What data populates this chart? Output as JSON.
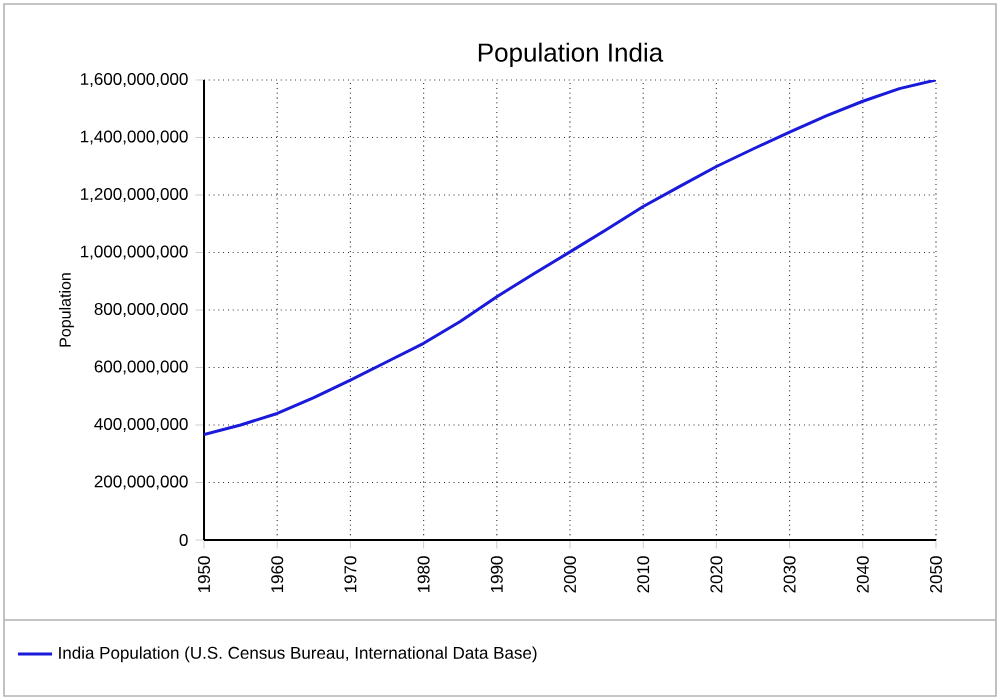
{
  "chart_data": {
    "type": "line",
    "title": "Population India",
    "ylabel": "Population",
    "x": [
      1950,
      1955,
      1960,
      1965,
      1970,
      1975,
      1980,
      1985,
      1990,
      1995,
      2000,
      2005,
      2010,
      2015,
      2020,
      2025,
      2030,
      2035,
      2040,
      2045,
      2050
    ],
    "series": [
      {
        "name": "India Population (U.S. Census Bureau, International Data Base)",
        "color": "#1a1adb",
        "values": [
          367000000,
          400000000,
          440000000,
          495000000,
          556000000,
          620000000,
          684000000,
          760000000,
          846000000,
          925000000,
          1002000000,
          1080000000,
          1160000000,
          1230000000,
          1299000000,
          1360000000,
          1419000000,
          1475000000,
          1526000000,
          1570000000,
          1600000000
        ]
      }
    ],
    "xlim": [
      1950,
      2050
    ],
    "ylim": [
      0,
      1600000000
    ],
    "xticks": [
      1950,
      1960,
      1970,
      1980,
      1990,
      2000,
      2010,
      2020,
      2030,
      2040,
      2050
    ],
    "yticks": [
      {
        "value": 0,
        "label": "0"
      },
      {
        "value": 200000000,
        "label": "200,000,000"
      },
      {
        "value": 400000000,
        "label": "400,000,000"
      },
      {
        "value": 600000000,
        "label": "600,000,000"
      },
      {
        "value": 800000000,
        "label": "800,000,000"
      },
      {
        "value": 1000000000,
        "label": "1,000,000,000"
      },
      {
        "value": 1200000000,
        "label": "1,200,000,000"
      },
      {
        "value": 1400000000,
        "label": "1,400,000,000"
      },
      {
        "value": 1600000000,
        "label": "1,600,000,000"
      }
    ],
    "grid": true,
    "legend": "bottom",
    "marker": "none",
    "line_style": "solid"
  }
}
